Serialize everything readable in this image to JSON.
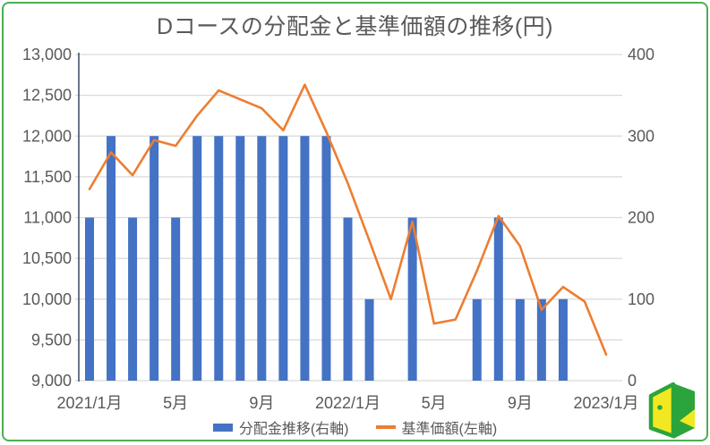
{
  "title": "Dコースの分配金と基準価額の推移(円)",
  "legend": {
    "bar_label": "分配金推移(右軸)",
    "line_label": "基準価額(左軸)"
  },
  "colors": {
    "bar": "#4472c4",
    "line": "#ed7d31",
    "grid": "#d9d9d9",
    "axis_line": "#44546a",
    "text": "#595959",
    "border": "#4caf50",
    "logo_green": "#2ca43c",
    "logo_yellow": "#f2e822"
  },
  "chart_data": {
    "type": "combo: bar (right axis) + line (left axis)",
    "title": "Dコースの分配金と基準価額の推移(円)",
    "categories": [
      "2021/1",
      "2021/2",
      "2021/3",
      "2021/4",
      "2021/5",
      "2021/6",
      "2021/7",
      "2021/8",
      "2021/9",
      "2021/10",
      "2021/11",
      "2021/12",
      "2022/1",
      "2022/2",
      "2022/3",
      "2022/4",
      "2022/5",
      "2022/6",
      "2022/7",
      "2022/8",
      "2022/9",
      "2022/10",
      "2022/11",
      "2022/12",
      "2023/1"
    ],
    "x_tick_labels": [
      "2021/1月",
      "5月",
      "9月",
      "2022/1月",
      "5月",
      "9月",
      "2023/1月"
    ],
    "x_tick_indices": [
      0,
      4,
      8,
      12,
      16,
      20,
      24
    ],
    "series": [
      {
        "name": "分配金推移(右軸)",
        "type": "bar",
        "axis": "right",
        "values": [
          200,
          300,
          200,
          300,
          200,
          300,
          300,
          300,
          300,
          300,
          300,
          300,
          200,
          100,
          0,
          200,
          0,
          0,
          100,
          200,
          100,
          100,
          100,
          0,
          0
        ]
      },
      {
        "name": "基準価額(左軸)",
        "type": "line",
        "axis": "left",
        "values": [
          11350,
          11800,
          11520,
          11950,
          11880,
          12250,
          12560,
          12450,
          12340,
          12070,
          12630,
          12050,
          11420,
          10720,
          10000,
          10950,
          9700,
          9750,
          10350,
          11020,
          10650,
          9870,
          10150,
          9970,
          9320
        ]
      }
    ],
    "left_axis": {
      "min": 9000,
      "max": 13000,
      "step": 500,
      "tick_labels": [
        "13,000",
        "12,500",
        "12,000",
        "11,500",
        "11,000",
        "10,500",
        "10,000",
        "9,500",
        "9,000"
      ]
    },
    "right_axis": {
      "min": 0,
      "max": 400,
      "step": 100,
      "tick_labels": [
        "400",
        "300",
        "200",
        "100",
        "0"
      ]
    },
    "grid": true,
    "legend_position": "bottom"
  }
}
